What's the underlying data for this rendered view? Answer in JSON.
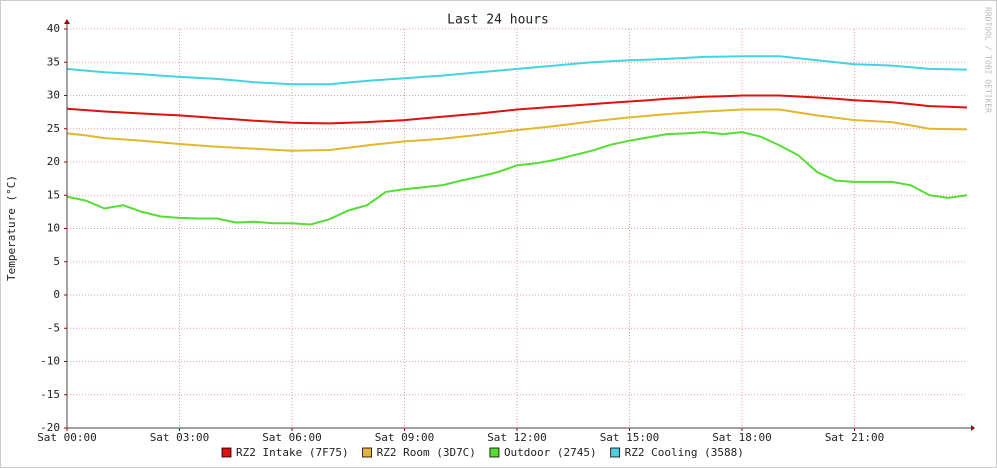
{
  "chart_data": {
    "type": "line",
    "title": "Last 24 hours",
    "y_label": "Temperature (°C)",
    "watermark": "RRDTOOL / TOBI OETIKER",
    "x": [
      0,
      0.5,
      1,
      1.5,
      2,
      2.5,
      3,
      3.5,
      4,
      4.5,
      5,
      5.5,
      6,
      6.5,
      7,
      7.5,
      8,
      8.5,
      9,
      9.5,
      10,
      10.5,
      11,
      11.5,
      12,
      12.5,
      13,
      13.5,
      14,
      14.5,
      15,
      15.5,
      16,
      16.5,
      17,
      17.5,
      18,
      18.5,
      19,
      19.5,
      20,
      20.5,
      21,
      21.5,
      22,
      22.5,
      23,
      23.5,
      24
    ],
    "xlim": [
      0,
      24
    ],
    "xticks": [
      {
        "value": 0,
        "label": "Sat 00:00"
      },
      {
        "value": 3,
        "label": "Sat 03:00"
      },
      {
        "value": 6,
        "label": "Sat 06:00"
      },
      {
        "value": 9,
        "label": "Sat 09:00"
      },
      {
        "value": 12,
        "label": "Sat 12:00"
      },
      {
        "value": 15,
        "label": "Sat 15:00"
      },
      {
        "value": 18,
        "label": "Sat 18:00"
      },
      {
        "value": 21,
        "label": "Sat 21:00"
      }
    ],
    "ylim": [
      -20,
      40
    ],
    "yticks": [
      -20,
      -15,
      -10,
      -5,
      0,
      5,
      10,
      15,
      20,
      25,
      30,
      35,
      40
    ],
    "grid": true,
    "legend": "bottom",
    "series": [
      {
        "name": "RZ2 Intake (7F75)",
        "color": "#dd1111",
        "values": [
          28,
          27.8,
          27.6,
          27.45,
          27.3,
          27.15,
          27,
          26.8,
          26.6,
          26.4,
          26.2,
          26.05,
          25.9,
          25.85,
          25.8,
          25.9,
          26,
          26.15,
          26.3,
          26.55,
          26.8,
          27.05,
          27.3,
          27.6,
          27.9,
          28.1,
          28.3,
          28.5,
          28.7,
          28.9,
          29.1,
          29.3,
          29.5,
          29.65,
          29.8,
          29.9,
          30,
          30,
          30,
          29.85,
          29.7,
          29.5,
          29.3,
          29.15,
          29,
          28.7,
          28.4,
          28.3,
          28.2
        ]
      },
      {
        "name": "RZ2 Room (3D7C)",
        "color": "#e0b82c",
        "values": [
          24.3,
          24,
          23.6,
          23.4,
          23.2,
          22.95,
          22.7,
          22.5,
          22.3,
          22.15,
          22,
          21.85,
          21.7,
          21.75,
          21.8,
          22.15,
          22.5,
          22.8,
          23.1,
          23.3,
          23.5,
          23.8,
          24.1,
          24.45,
          24.8,
          25.1,
          25.4,
          25.75,
          26.1,
          26.4,
          26.7,
          26.95,
          27.2,
          27.4,
          27.6,
          27.75,
          27.9,
          27.9,
          27.9,
          27.45,
          27,
          26.65,
          26.3,
          26.15,
          26,
          25.5,
          25,
          24.95,
          24.9
        ]
      },
      {
        "name": "Outdoor (2745)",
        "color": "#55dd33",
        "values": [
          14.8,
          14.2,
          13,
          13.5,
          12.5,
          11.8,
          11.6,
          11.5,
          11.5,
          10.9,
          11,
          10.8,
          10.8,
          10.6,
          11.4,
          12.7,
          13.5,
          15.5,
          15.9,
          16.2,
          16.5,
          17.2,
          17.8,
          18.5,
          19.5,
          19.8,
          20.3,
          21,
          21.7,
          22.6,
          23.2,
          23.7,
          24.2,
          24.3,
          24.5,
          24.2,
          24.5,
          23.8,
          22.5,
          21,
          18.5,
          17.2,
          17,
          17,
          17,
          16.5,
          15,
          14.6,
          15
        ]
      },
      {
        "name": "RZ2 Cooling (3588)",
        "color": "#44d4e0",
        "values": [
          34,
          33.75,
          33.5,
          33.35,
          33.2,
          33,
          32.8,
          32.65,
          32.5,
          32.25,
          32,
          31.85,
          31.7,
          31.7,
          31.7,
          31.95,
          32.2,
          32.4,
          32.6,
          32.8,
          33,
          33.25,
          33.5,
          33.75,
          34,
          34.25,
          34.5,
          34.75,
          35,
          35.15,
          35.3,
          35.4,
          35.5,
          35.65,
          35.8,
          35.85,
          35.9,
          35.9,
          35.9,
          35.6,
          35.3,
          35,
          34.7,
          34.6,
          34.5,
          34.25,
          34,
          33.95,
          33.9
        ]
      }
    ]
  }
}
